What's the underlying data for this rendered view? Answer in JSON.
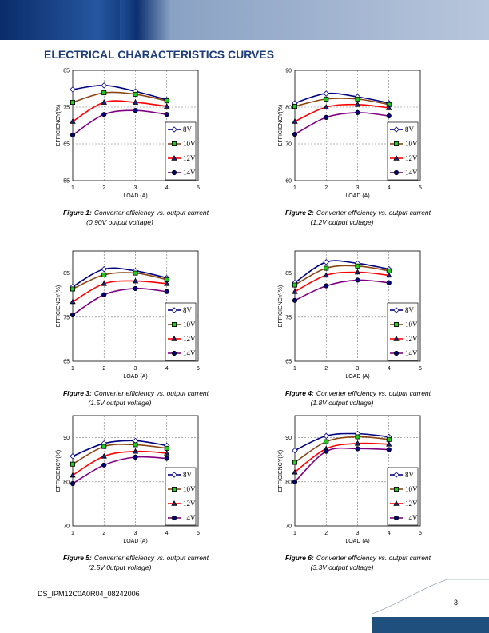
{
  "header": {
    "title": "ELECTRICAL CHARACTERISTICS CURVES"
  },
  "chart_data": [
    {
      "type": "line",
      "caption_label": "Figure 1:",
      "caption": "Converter efficiency vs. output current",
      "caption_note": "(0.90V output voltage)",
      "xlabel": "LOAD (A)",
      "ylabel": "EFFICIENCY(%)",
      "x": [
        1,
        2,
        3,
        4
      ],
      "xlim": [
        1,
        5
      ],
      "xticks": [
        1,
        2,
        3,
        4,
        5
      ],
      "ylim": [
        55,
        85
      ],
      "yticks": [
        55,
        65,
        75,
        85
      ],
      "grid": true,
      "legend": "right",
      "series": [
        {
          "name": "8V",
          "color": "#000080",
          "marker": "diamond",
          "marker_color": "#ffffff",
          "values": [
            79.8,
            80.9,
            79.3,
            77
          ]
        },
        {
          "name": "10V",
          "color": "#8b4513",
          "marker": "square",
          "marker_color": "#22cc22",
          "values": [
            76.3,
            78.9,
            78.5,
            76.7
          ]
        },
        {
          "name": "12V",
          "color": "#ff0000",
          "marker": "triangle",
          "marker_color": "#202080",
          "values": [
            71.1,
            76.3,
            76.3,
            75.2
          ]
        },
        {
          "name": "14V",
          "color": "#800080",
          "marker": "circle",
          "marker_color": "#000080",
          "values": [
            67.4,
            73,
            74.1,
            73
          ]
        }
      ]
    },
    {
      "type": "line",
      "caption_label": "Figure 2:",
      "caption": "Converter efficiency vs. output current",
      "caption_note": "(1.2V output voltage)",
      "xlabel": "LOAD (A)",
      "ylabel": "EFFICIENCY(%)",
      "x": [
        1,
        2,
        3,
        4
      ],
      "xlim": [
        1,
        5
      ],
      "xticks": [
        1,
        2,
        3,
        4,
        5
      ],
      "ylim": [
        60,
        90
      ],
      "yticks": [
        60,
        70,
        80,
        90
      ],
      "grid": true,
      "legend": "right",
      "series": [
        {
          "name": "8V",
          "color": "#000080",
          "marker": "diamond",
          "marker_color": "#ffffff",
          "values": [
            81.1,
            83.7,
            82.8,
            81.1
          ]
        },
        {
          "name": "10V",
          "color": "#8b4513",
          "marker": "square",
          "marker_color": "#22cc22",
          "values": [
            80.2,
            82.2,
            82.2,
            80.7
          ]
        },
        {
          "name": "12V",
          "color": "#ff0000",
          "marker": "triangle",
          "marker_color": "#202080",
          "values": [
            76.1,
            80,
            80.7,
            79.8
          ]
        },
        {
          "name": "14V",
          "color": "#800080",
          "marker": "circle",
          "marker_color": "#000080",
          "values": [
            72.6,
            77.2,
            78.5,
            77.6
          ]
        }
      ]
    },
    {
      "type": "line",
      "caption_label": "Figure 3:",
      "caption": "Converter efficiency vs. output current",
      "caption_note": "(1.5V output voltage)",
      "xlabel": "LOAD (A)",
      "ylabel": "EFFICIENCY(%)",
      "x": [
        1,
        2,
        3,
        4
      ],
      "xlim": [
        1,
        5
      ],
      "xticks": [
        1,
        2,
        3,
        4,
        5
      ],
      "ylim": [
        65,
        90
      ],
      "yticks": [
        65,
        75,
        85
      ],
      "grid": true,
      "legend": "right",
      "series": [
        {
          "name": "8V",
          "color": "#000080",
          "marker": "diamond",
          "marker_color": "#ffffff",
          "values": [
            81.9,
            85.9,
            85.5,
            83.9
          ]
        },
        {
          "name": "10V",
          "color": "#8b4513",
          "marker": "square",
          "marker_color": "#22cc22",
          "values": [
            81.4,
            84.6,
            85,
            83.5
          ]
        },
        {
          "name": "12V",
          "color": "#ff0000",
          "marker": "triangle",
          "marker_color": "#202080",
          "values": [
            78.5,
            82.6,
            83.2,
            82.6
          ]
        },
        {
          "name": "14V",
          "color": "#800080",
          "marker": "circle",
          "marker_color": "#000080",
          "values": [
            75.5,
            80.1,
            81.5,
            80.8
          ]
        }
      ]
    },
    {
      "type": "line",
      "caption_label": "Figure 4:",
      "caption": "Converter efficiency vs. output current",
      "caption_note": "(1.8V output voltage)",
      "xlabel": "LOAD (A)",
      "ylabel": "EFFICIENCY(%)",
      "x": [
        1,
        2,
        3,
        4
      ],
      "xlim": [
        1,
        5
      ],
      "xticks": [
        1,
        2,
        3,
        4,
        5
      ],
      "ylim": [
        65,
        90
      ],
      "yticks": [
        65,
        75,
        85
      ],
      "grid": true,
      "legend": "right",
      "series": [
        {
          "name": "8V",
          "color": "#000080",
          "marker": "diamond",
          "marker_color": "#ffffff",
          "values": [
            82.8,
            87.5,
            87.2,
            85.9
          ]
        },
        {
          "name": "10V",
          "color": "#8b4513",
          "marker": "square",
          "marker_color": "#22cc22",
          "values": [
            82.3,
            86.1,
            86.6,
            85.5
          ]
        },
        {
          "name": "12V",
          "color": "#ff0000",
          "marker": "triangle",
          "marker_color": "#202080",
          "values": [
            80.8,
            84.5,
            85.2,
            84.5
          ]
        },
        {
          "name": "14V",
          "color": "#800080",
          "marker": "circle",
          "marker_color": "#000080",
          "values": [
            78.8,
            82.1,
            83.4,
            82.8
          ]
        }
      ]
    },
    {
      "type": "line",
      "caption_label": "Figure 5:",
      "caption": "Converter efficiency vs. output current",
      "caption_note": "(2.5V 0utput voltage)",
      "xlabel": "LOAD (A)",
      "ylabel": "EFFICIENCY(%)",
      "x": [
        1,
        2,
        3,
        4
      ],
      "xlim": [
        1,
        5
      ],
      "xticks": [
        1,
        2,
        3,
        4,
        5
      ],
      "ylim": [
        70,
        95
      ],
      "yticks": [
        70,
        80,
        90
      ],
      "grid": true,
      "legend": "right",
      "series": [
        {
          "name": "8V",
          "color": "#000080",
          "marker": "diamond",
          "marker_color": "#ffffff",
          "values": [
            85.8,
            88.7,
            89.3,
            88.2
          ]
        },
        {
          "name": "10V",
          "color": "#8b4513",
          "marker": "square",
          "marker_color": "#22cc22",
          "values": [
            84,
            88,
            88.4,
            87.6
          ]
        },
        {
          "name": "12V",
          "color": "#ff0000",
          "marker": "triangle",
          "marker_color": "#202080",
          "values": [
            81.5,
            85.8,
            86.9,
            86.5
          ]
        },
        {
          "name": "14V",
          "color": "#800080",
          "marker": "circle",
          "marker_color": "#000080",
          "values": [
            79.6,
            83.8,
            85.6,
            85.3
          ]
        }
      ]
    },
    {
      "type": "line",
      "caption_label": "Figure 6:",
      "caption": "Converter efficiency vs. output current",
      "caption_note": "(3.3V output voltage)",
      "xlabel": "LOAD (A)",
      "ylabel": "EFFICIENCY(%)",
      "x": [
        1,
        2,
        3,
        4
      ],
      "xlim": [
        1,
        5
      ],
      "xticks": [
        1,
        2,
        3,
        4,
        5
      ],
      "ylim": [
        70,
        95
      ],
      "yticks": [
        70,
        80,
        90
      ],
      "grid": true,
      "legend": "right",
      "series": [
        {
          "name": "8V",
          "color": "#000080",
          "marker": "diamond",
          "marker_color": "#ffffff",
          "values": [
            87.1,
            90.4,
            90.9,
            90.2
          ]
        },
        {
          "name": "10V",
          "color": "#8b4513",
          "marker": "square",
          "marker_color": "#22cc22",
          "values": [
            84.4,
            89.1,
            90.2,
            89.6
          ]
        },
        {
          "name": "12V",
          "color": "#ff0000",
          "marker": "triangle",
          "marker_color": "#202080",
          "values": [
            82.2,
            87.5,
            88.7,
            88.5
          ]
        },
        {
          "name": "14V",
          "color": "#800080",
          "marker": "circle",
          "marker_color": "#000080",
          "values": [
            80,
            86.9,
            87.5,
            87.3
          ]
        }
      ]
    }
  ],
  "footer": {
    "doc_id": "DS_IPM12C0A0R04_08242006",
    "page": "3"
  }
}
